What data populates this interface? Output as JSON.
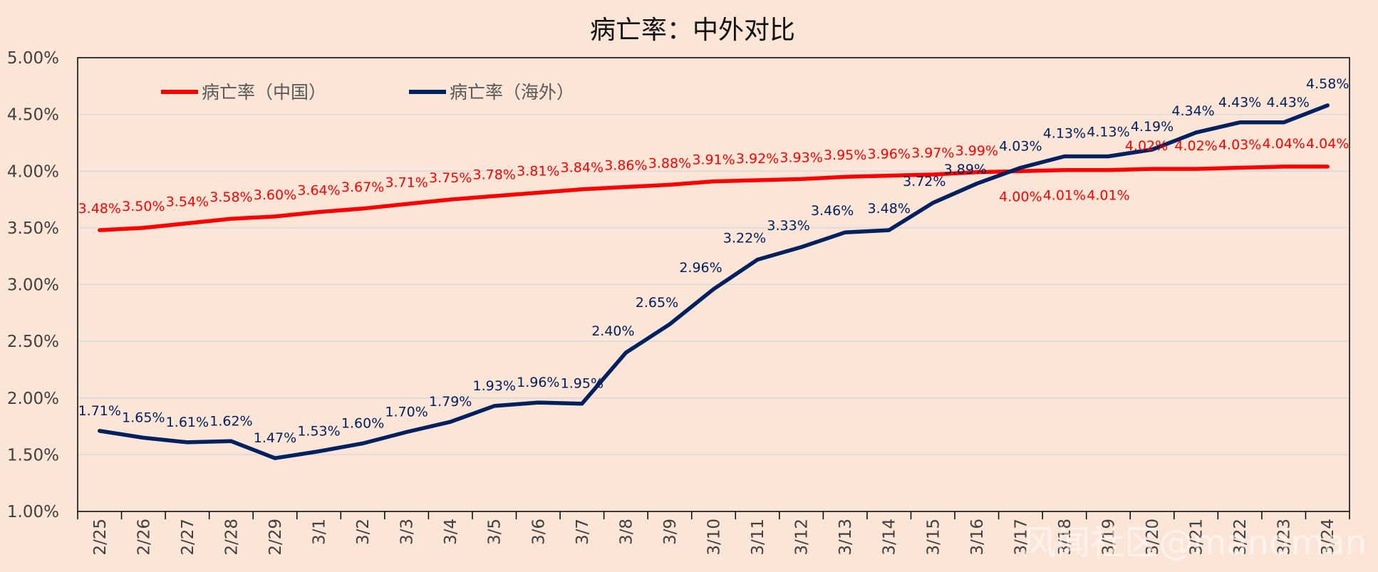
{
  "chart_data": {
    "type": "line",
    "title": "病亡率：中外对比",
    "xlabel": "",
    "ylabel": "",
    "ylim": [
      1.0,
      5.0
    ],
    "yticks": [
      "1.00%",
      "1.50%",
      "2.00%",
      "2.50%",
      "3.00%",
      "3.50%",
      "4.00%",
      "4.50%",
      "5.00%"
    ],
    "ytick_values": [
      1.0,
      1.5,
      2.0,
      2.5,
      3.0,
      3.5,
      4.0,
      4.5,
      5.0
    ],
    "categories": [
      "2/25",
      "2/26",
      "2/27",
      "2/28",
      "2/29",
      "3/1",
      "3/2",
      "3/3",
      "3/4",
      "3/5",
      "3/6",
      "3/7",
      "3/8",
      "3/9",
      "3/10",
      "3/11",
      "3/12",
      "3/13",
      "3/14",
      "3/15",
      "3/16",
      "3/17",
      "3/18",
      "3/19",
      "3/20",
      "3/21",
      "3/22",
      "3/23",
      "3/24"
    ],
    "legend_position": "top-left",
    "grid": true,
    "series": [
      {
        "name": "病亡率（中国）",
        "color": "#FF0000",
        "values": [
          3.48,
          3.5,
          3.54,
          3.58,
          3.6,
          3.64,
          3.67,
          3.71,
          3.75,
          3.78,
          3.81,
          3.84,
          3.86,
          3.88,
          3.91,
          3.92,
          3.93,
          3.95,
          3.96,
          3.97,
          3.99,
          4.0,
          4.01,
          4.01,
          4.02,
          4.02,
          4.03,
          4.04,
          4.04
        ],
        "labels": [
          "3.48%",
          "3.50%",
          "3.54%",
          "3.58%",
          "3.60%",
          "3.64%",
          "3.67%",
          "3.71%",
          "3.75%",
          "3.78%",
          "3.81%",
          "3.84%",
          "3.86%",
          "3.88%",
          "3.91%",
          "3.92%",
          "3.93%",
          "3.95%",
          "3.96%",
          "3.97%",
          "3.99%",
          "4.00%",
          "4.01%",
          "4.01%",
          "4.02%",
          "4.02%",
          "4.03%",
          "4.04%",
          "4.04%"
        ]
      },
      {
        "name": "病亡率（海外）",
        "color": "#002060",
        "values": [
          1.71,
          1.65,
          1.61,
          1.62,
          1.47,
          1.53,
          1.6,
          1.7,
          1.79,
          1.93,
          1.96,
          1.95,
          2.4,
          2.65,
          2.96,
          3.22,
          3.33,
          3.46,
          3.48,
          3.72,
          3.89,
          4.03,
          4.13,
          4.13,
          4.19,
          4.34,
          4.43,
          4.43,
          4.58
        ],
        "labels": [
          "1.71%",
          "1.65%",
          "1.61%",
          "1.62%",
          "1.47%",
          "1.53%",
          "1.60%",
          "1.70%",
          "1.79%",
          "1.93%",
          "1.96%",
          "1.95%",
          "2.40%",
          "2.65%",
          "2.96%",
          "3.22%",
          "3.33%",
          "3.46%",
          "3.48%",
          "3.72%",
          "3.89%",
          "4.03%",
          "4.13%",
          "4.13%",
          "4.19%",
          "4.34%",
          "4.43%",
          "4.43%",
          "4.58%"
        ]
      }
    ]
  },
  "watermark": "风闻社区@mandman",
  "colors": {
    "background": "#FBE5D6",
    "grid": "#D9D9D9",
    "axis": "#000000"
  }
}
